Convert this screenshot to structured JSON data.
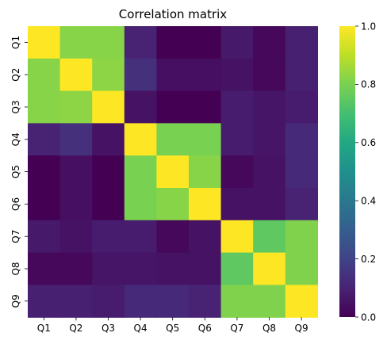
{
  "chart_data": {
    "type": "heatmap",
    "title": "Correlation matrix",
    "row_labels": [
      "Q1",
      "Q2",
      "Q3",
      "Q4",
      "Q5",
      "Q6",
      "Q7",
      "Q8",
      "Q9"
    ],
    "col_labels": [
      "Q1",
      "Q2",
      "Q3",
      "Q4",
      "Q5",
      "Q6",
      "Q7",
      "Q8",
      "Q9"
    ],
    "values": [
      [
        1.0,
        0.82,
        0.82,
        0.1,
        0.0,
        0.0,
        0.07,
        0.02,
        0.09
      ],
      [
        0.82,
        1.0,
        0.83,
        0.14,
        0.04,
        0.04,
        0.05,
        0.02,
        0.09
      ],
      [
        0.82,
        0.83,
        1.0,
        0.05,
        0.0,
        0.0,
        0.08,
        0.06,
        0.08
      ],
      [
        0.1,
        0.14,
        0.05,
        1.0,
        0.8,
        0.8,
        0.08,
        0.06,
        0.12
      ],
      [
        0.0,
        0.04,
        0.0,
        0.8,
        1.0,
        0.82,
        0.02,
        0.05,
        0.12
      ],
      [
        0.0,
        0.04,
        0.0,
        0.8,
        0.82,
        1.0,
        0.05,
        0.05,
        0.1
      ],
      [
        0.07,
        0.05,
        0.08,
        0.08,
        0.02,
        0.05,
        1.0,
        0.75,
        0.81
      ],
      [
        0.02,
        0.02,
        0.06,
        0.06,
        0.05,
        0.05,
        0.75,
        1.0,
        0.81
      ],
      [
        0.09,
        0.09,
        0.08,
        0.12,
        0.12,
        0.1,
        0.81,
        0.81,
        1.0
      ]
    ],
    "colormap": "viridis",
    "vmin": 0.0,
    "vmax": 1.0,
    "colorbar_ticks": [
      "0.0",
      "0.2",
      "0.4",
      "0.6",
      "0.8",
      "1.0"
    ],
    "grid": false
  }
}
